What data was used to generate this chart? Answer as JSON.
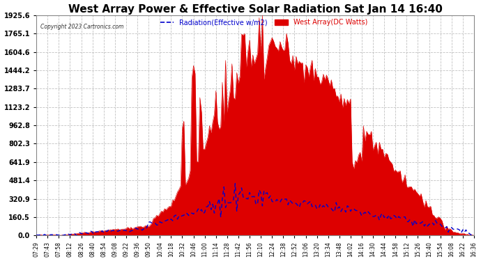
{
  "title": "West Array Power & Effective Solar Radiation Sat Jan 14 16:40",
  "copyright": "Copyright 2023 Cartronics.com",
  "legend_radiation": "Radiation(Effective w/m2)",
  "legend_west": "West Array(DC Watts)",
  "ylabel_values": [
    0.0,
    160.5,
    320.9,
    481.4,
    641.9,
    802.3,
    962.8,
    1123.2,
    1283.7,
    1444.2,
    1604.6,
    1765.1,
    1925.6
  ],
  "time_labels": [
    "07:29",
    "07:43",
    "07:58",
    "08:12",
    "08:26",
    "08:40",
    "08:54",
    "09:08",
    "09:22",
    "09:36",
    "09:50",
    "10:04",
    "10:18",
    "10:32",
    "10:46",
    "11:00",
    "11:14",
    "11:28",
    "11:42",
    "11:56",
    "12:10",
    "12:24",
    "12:38",
    "12:52",
    "13:06",
    "13:20",
    "13:34",
    "13:48",
    "14:02",
    "14:16",
    "14:30",
    "14:44",
    "14:58",
    "15:12",
    "15:26",
    "15:40",
    "15:54",
    "16:08",
    "16:22",
    "16:36"
  ],
  "background_color": "#ffffff",
  "plot_bg_color": "#ffffff",
  "red_color": "#dd0000",
  "radiation_color": "#0000cc",
  "west_color": "#dd0000",
  "grid_color": "#bbbbbb",
  "title_color": "#000000",
  "copyright_color": "#333333"
}
